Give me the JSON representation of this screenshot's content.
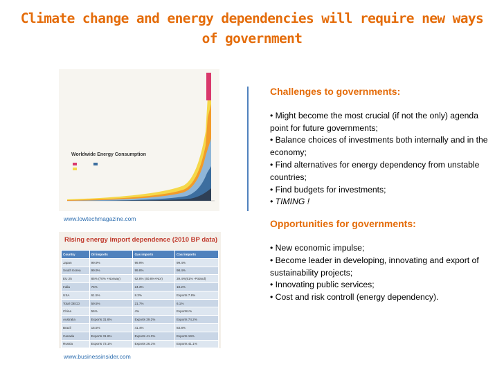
{
  "title": "Climate change and energy dependencies will require new ways of government",
  "chart_image": {
    "caption": "Worldwide Energy Consumption",
    "source": "www.lowtechmagazine.com"
  },
  "table": {
    "title": "Rising energy import dependence (2010 BP data)",
    "rows": [
      [
        "Country",
        "Oil imports",
        "Gas imports",
        "Coal imports"
      ],
      [
        "Japan",
        "99.9%",
        "99.9%",
        "99.4%"
      ],
      [
        "South Korea",
        "99.9%",
        "99.8%",
        "98.4%"
      ],
      [
        "EU 25",
        "85% (70% +Norway)",
        "62.8% (40.8%+Nor)",
        "39.4%(61% -Poland)"
      ],
      [
        "India",
        "76%",
        "24.3%",
        "18.2%"
      ],
      [
        "USA",
        "61.5%",
        "8.3%",
        "Exports 7.8%"
      ],
      [
        "Total OECD",
        "59.5%",
        "21.7%",
        "6.1%"
      ],
      [
        "China",
        "56%",
        "4%",
        "Exports1%"
      ],
      [
        "Australia",
        "Exports 31.6%",
        "Exports 39.2%",
        "Exports 74.2%"
      ],
      [
        "Brazil",
        "15.5%",
        "41.4%",
        "83.8%"
      ],
      [
        "Canada",
        "Exports 31.6%",
        "Exports 41.3%",
        "Exports 19%"
      ],
      [
        "Russia",
        "Exports 73.1%",
        "Exports 26.1%",
        "Exports 41.1%"
      ]
    ],
    "source": "www.businessinsider.com"
  },
  "challenges": {
    "heading": "Challenges to governments:",
    "items": [
      "• Might become the most crucial (if not the only) agenda point for future governments;",
      "• Balance choices of investments both internally and in the economy;",
      "• Find alternatives for energy dependency from unstable countries;",
      "• Find budgets for investments;",
      "• TIMING !"
    ]
  },
  "opportunities": {
    "heading": "Opportunities for governments:",
    "items": [
      "• New economic impulse;",
      "• Become leader in developing, innovating and export of sustainability projects;",
      "• Innovating public services;",
      "• Cost and risk controll (energy dependency)."
    ]
  }
}
